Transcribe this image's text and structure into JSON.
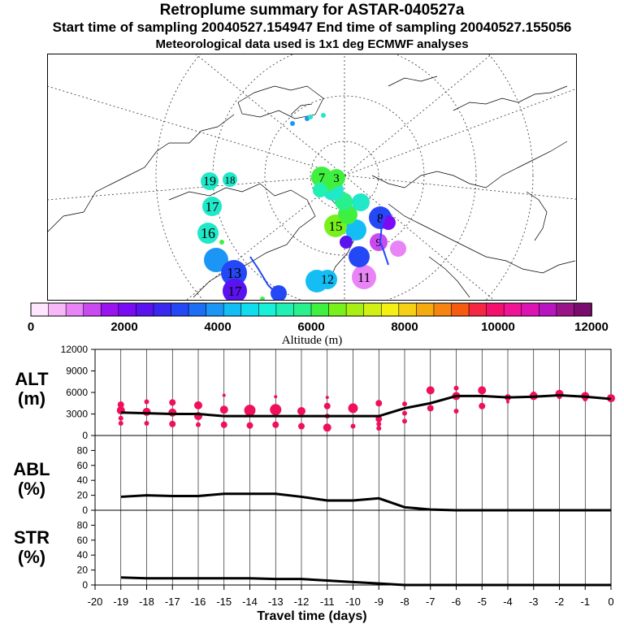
{
  "header": {
    "title": "Retroplume summary for ASTAR-040527a",
    "sampling_line": "Start time of sampling 20040527.154947     End time of sampling 20040527.155056",
    "met_line": "Meteorological data used is 1x1 deg ECMWF analyses"
  },
  "colorbar": {
    "label": "Altitude (m)",
    "ticks": [
      "0",
      "2000",
      "4000",
      "6000",
      "8000",
      "10000",
      "12000"
    ],
    "colors": [
      "#ffe6ff",
      "#f7b8f7",
      "#e884f5",
      "#c94bf0",
      "#9a14f0",
      "#7a0cf5",
      "#5a12ee",
      "#3a28f0",
      "#2448f5",
      "#1e6ef5",
      "#1c96f5",
      "#14bef5",
      "#10dcf0",
      "#18f0d8",
      "#20f0b4",
      "#28f08c",
      "#40f040",
      "#78f01c",
      "#a8f014",
      "#d2f014",
      "#f5f014",
      "#f5d014",
      "#f5aa10",
      "#f58410",
      "#f55c10",
      "#f52844",
      "#f5106e",
      "#f01496",
      "#dc14b4",
      "#b814c0",
      "#9a1488",
      "#7a0c6e"
    ]
  },
  "map": {
    "markers": [
      {
        "label": "19",
        "color": "#20e8c8"
      },
      {
        "label": "18",
        "color": "#20e8c8"
      },
      {
        "label": "17",
        "color": "#20e8c8"
      },
      {
        "label": "16",
        "color": "#20e8c8"
      },
      {
        "label": "15",
        "color": "#40f040"
      },
      {
        "label": "7",
        "color": "#40f040"
      },
      {
        "label": "3",
        "color": "#40f040"
      },
      {
        "label": "8",
        "color": "#2448f5"
      },
      {
        "label": "9",
        "color": "#c94bf0"
      },
      {
        "label": "11",
        "color": "#e884f5"
      },
      {
        "label": "12",
        "color": "#14bef5"
      },
      {
        "label": "13",
        "color": "#1c96f5"
      },
      {
        "label": "17",
        "color": "#5a12ee"
      }
    ]
  },
  "chart_data": [
    {
      "type": "line",
      "panel": "ALT",
      "ylabel": "ALT\n(m)",
      "label_line1": "ALT",
      "label_line2": "(m)",
      "x": [
        -19,
        -18,
        -17,
        -16,
        -15,
        -14,
        -13,
        -12,
        -11,
        -10,
        -9,
        -8,
        -7,
        -6,
        -5,
        -4,
        -3,
        -2,
        -1,
        0
      ],
      "median": [
        3200,
        3100,
        3000,
        3000,
        2700,
        2700,
        2700,
        2700,
        2700,
        2700,
        2700,
        3800,
        4500,
        5500,
        5500,
        5300,
        5400,
        5600,
        5400,
        5100
      ],
      "ylim": [
        0,
        12000
      ],
      "yticks": [
        0,
        3000,
        6000,
        9000,
        12000
      ],
      "dots": [
        {
          "x": -19,
          "y": 4300,
          "r": 4
        },
        {
          "x": -19,
          "y": 3500,
          "r": 5
        },
        {
          "x": -19,
          "y": 2400,
          "r": 3
        },
        {
          "x": -19,
          "y": 1700,
          "r": 3
        },
        {
          "x": -18,
          "y": 4700,
          "r": 3
        },
        {
          "x": -18,
          "y": 3300,
          "r": 5
        },
        {
          "x": -18,
          "y": 1700,
          "r": 3
        },
        {
          "x": -17,
          "y": 4600,
          "r": 4
        },
        {
          "x": -17,
          "y": 3200,
          "r": 5
        },
        {
          "x": -17,
          "y": 1600,
          "r": 4
        },
        {
          "x": -16,
          "y": 4200,
          "r": 5
        },
        {
          "x": -16,
          "y": 2700,
          "r": 5
        },
        {
          "x": -16,
          "y": 1500,
          "r": 3
        },
        {
          "x": -15,
          "y": 5600,
          "r": 2
        },
        {
          "x": -15,
          "y": 3600,
          "r": 5
        },
        {
          "x": -15,
          "y": 1500,
          "r": 4
        },
        {
          "x": -14,
          "y": 3500,
          "r": 7
        },
        {
          "x": -14,
          "y": 1400,
          "r": 4
        },
        {
          "x": -13,
          "y": 5400,
          "r": 2
        },
        {
          "x": -13,
          "y": 3600,
          "r": 7
        },
        {
          "x": -13,
          "y": 1500,
          "r": 4
        },
        {
          "x": -12,
          "y": 3400,
          "r": 5
        },
        {
          "x": -12,
          "y": 1300,
          "r": 4
        },
        {
          "x": -11,
          "y": 5300,
          "r": 2
        },
        {
          "x": -11,
          "y": 4100,
          "r": 4
        },
        {
          "x": -11,
          "y": 2700,
          "r": 3
        },
        {
          "x": -11,
          "y": 1100,
          "r": 5
        },
        {
          "x": -10,
          "y": 3800,
          "r": 6
        },
        {
          "x": -10,
          "y": 1300,
          "r": 3
        },
        {
          "x": -9,
          "y": 4500,
          "r": 4
        },
        {
          "x": -9,
          "y": 2300,
          "r": 4
        },
        {
          "x": -9,
          "y": 1600,
          "r": 3
        },
        {
          "x": -9,
          "y": 1000,
          "r": 3
        },
        {
          "x": -8,
          "y": 4400,
          "r": 3
        },
        {
          "x": -8,
          "y": 3100,
          "r": 3
        },
        {
          "x": -8,
          "y": 2000,
          "r": 3
        },
        {
          "x": -7,
          "y": 6300,
          "r": 5
        },
        {
          "x": -7,
          "y": 3800,
          "r": 4
        },
        {
          "x": -6,
          "y": 6600,
          "r": 3
        },
        {
          "x": -6,
          "y": 5500,
          "r": 5
        },
        {
          "x": -6,
          "y": 3400,
          "r": 3
        },
        {
          "x": -5,
          "y": 6300,
          "r": 5
        },
        {
          "x": -5,
          "y": 4100,
          "r": 4
        },
        {
          "x": -4,
          "y": 5300,
          "r": 4
        },
        {
          "x": -4,
          "y": 4700,
          "r": 2
        },
        {
          "x": -3,
          "y": 5500,
          "r": 5
        },
        {
          "x": -3,
          "y": 5800,
          "r": 3
        },
        {
          "x": -2,
          "y": 5800,
          "r": 5
        },
        {
          "x": -2,
          "y": 5400,
          "r": 3
        },
        {
          "x": -1,
          "y": 5500,
          "r": 5
        },
        {
          "x": -1,
          "y": 5100,
          "r": 3
        },
        {
          "x": 0,
          "y": 5200,
          "r": 5
        }
      ],
      "dot_color": "#f0105a"
    },
    {
      "type": "line",
      "panel": "ABL",
      "ylabel": "ABL\n(%)",
      "label_line1": "ABL",
      "label_line2": "(%)",
      "x": [
        -19,
        -18,
        -17,
        -16,
        -15,
        -14,
        -13,
        -12,
        -11,
        -10,
        -9,
        -8,
        -7,
        -6,
        -5,
        -4,
        -3,
        -2,
        -1,
        0
      ],
      "values": [
        18,
        20,
        19,
        19,
        22,
        22,
        22,
        18,
        13,
        13,
        16,
        4,
        1,
        0,
        0,
        0,
        0,
        0,
        0,
        0
      ],
      "ylim": [
        0,
        100
      ],
      "yticks": [
        0,
        20,
        40,
        60,
        80
      ]
    },
    {
      "type": "line",
      "panel": "STR",
      "ylabel": "STR\n(%)",
      "label_line1": "STR",
      "label_line2": "(%)",
      "x": [
        -19,
        -18,
        -17,
        -16,
        -15,
        -14,
        -13,
        -12,
        -11,
        -10,
        -9,
        -8,
        -7,
        -6,
        -5,
        -4,
        -3,
        -2,
        -1,
        0
      ],
      "values": [
        10,
        9,
        9,
        9,
        9,
        9,
        8,
        8,
        6,
        4,
        2,
        0,
        0,
        0,
        0,
        0,
        0,
        0,
        0,
        0
      ],
      "ylim": [
        0,
        100
      ],
      "yticks": [
        0,
        20,
        40,
        60,
        80
      ]
    }
  ],
  "xaxis": {
    "title": "Travel time (days)",
    "ticks": [
      "-20",
      "-19",
      "-18",
      "-17",
      "-16",
      "-15",
      "-14",
      "-13",
      "-12",
      "-11",
      "-10",
      "-9",
      "-8",
      "-7",
      "-6",
      "-5",
      "-4",
      "-3",
      "-2",
      "-1",
      "0"
    ]
  }
}
